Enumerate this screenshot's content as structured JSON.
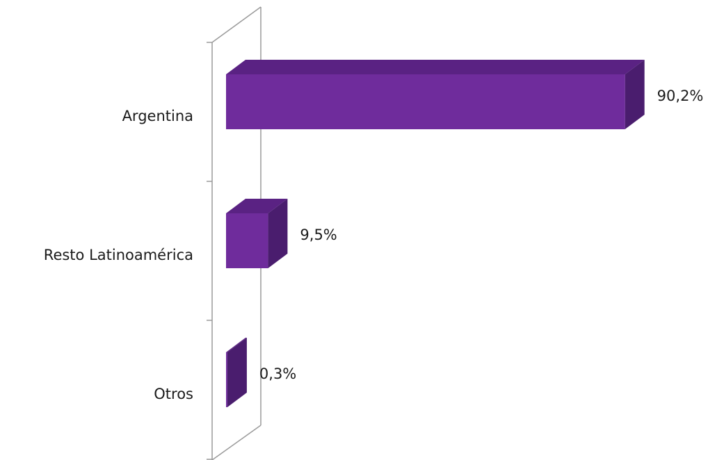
{
  "chart_data": {
    "type": "bar",
    "orientation": "horizontal",
    "style": "3d",
    "categories": [
      "Argentina",
      "Resto Latinoamérica",
      "Otros"
    ],
    "values": [
      90.2,
      9.5,
      0.3
    ],
    "value_labels": [
      "90,2%",
      "9,5%",
      "0,3%"
    ],
    "unit": "%",
    "xlim": [
      0,
      100
    ],
    "grid": false,
    "legend": "none",
    "colors": {
      "front": "#6f2c9c",
      "top": "#5a2283",
      "side": "#4a1d6e",
      "axis": "#9a9a9a"
    }
  }
}
